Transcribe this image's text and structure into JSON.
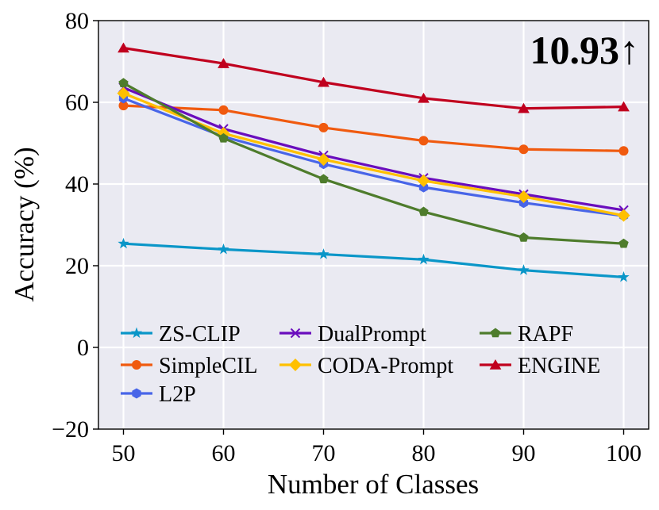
{
  "chart_data": {
    "type": "line",
    "xlabel": "Number of Classes",
    "ylabel": "Accuracy (%)",
    "x": [
      50,
      60,
      70,
      80,
      90,
      100
    ],
    "xticks": [
      "50",
      "60",
      "70",
      "80",
      "90",
      "100"
    ],
    "yticks": [
      "80",
      "60",
      "40",
      "20",
      "0",
      "−20"
    ],
    "xlim": [
      47.5,
      102.5
    ],
    "ylim": [
      -20,
      80
    ],
    "grid": true,
    "legend_position": "bottom-left",
    "annotation": "10.93↑",
    "series": [
      {
        "name": "ZS-CLIP",
        "color": "#0a96c8",
        "marker": "star",
        "values": [
          25.4,
          24.0,
          22.8,
          21.5,
          18.9,
          17.2
        ]
      },
      {
        "name": "SimpleCIL",
        "color": "#f05a0f",
        "marker": "circle",
        "values": [
          59.2,
          58.1,
          53.8,
          50.6,
          48.5,
          48.1
        ]
      },
      {
        "name": "L2P",
        "color": "#4865e8",
        "marker": "hexagon",
        "values": [
          61.0,
          51.6,
          44.9,
          39.2,
          35.4,
          32.2
        ]
      },
      {
        "name": "DualPrompt",
        "color": "#6a0dbd",
        "marker": "x",
        "values": [
          63.6,
          53.5,
          47.0,
          41.5,
          37.5,
          33.6
        ]
      },
      {
        "name": "CODA-Prompt",
        "color": "#ffc000",
        "marker": "diamond",
        "values": [
          62.2,
          52.4,
          46.0,
          40.8,
          36.9,
          32.3
        ]
      },
      {
        "name": "RAPF",
        "color": "#4e7c2c",
        "marker": "pentagon",
        "values": [
          64.7,
          51.2,
          41.2,
          33.2,
          26.9,
          25.4
        ]
      },
      {
        "name": "ENGINE",
        "color": "#c0001e",
        "marker": "triangle",
        "values": [
          73.3,
          69.5,
          64.9,
          61.0,
          58.5,
          58.9
        ]
      }
    ]
  }
}
